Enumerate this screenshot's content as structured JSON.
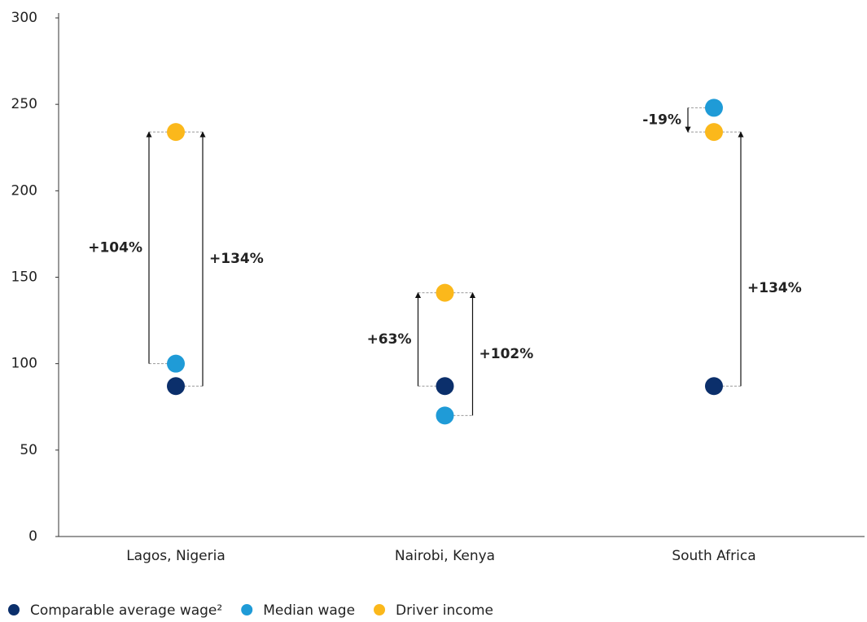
{
  "chart_data": {
    "type": "dot",
    "categories": [
      "Lagos, Nigeria",
      "Nairobi, Kenya",
      "South Africa"
    ],
    "series": [
      {
        "name": "Comparable average wage²",
        "color": "#0b2f6b",
        "values": [
          87,
          87,
          87
        ]
      },
      {
        "name": "Median wage",
        "color": "#1f9bd7",
        "values": [
          100,
          70,
          248
        ]
      },
      {
        "name": "Driver income",
        "color": "#fbb81b",
        "values": [
          234,
          141,
          234
        ]
      }
    ],
    "annotations": [
      "+104%",
      "+134%",
      "+63%",
      "+102%",
      "-19%",
      "+134%"
    ],
    "ylim": [
      0,
      300
    ],
    "yticks": [
      0,
      50,
      100,
      150,
      200,
      250,
      300
    ]
  }
}
